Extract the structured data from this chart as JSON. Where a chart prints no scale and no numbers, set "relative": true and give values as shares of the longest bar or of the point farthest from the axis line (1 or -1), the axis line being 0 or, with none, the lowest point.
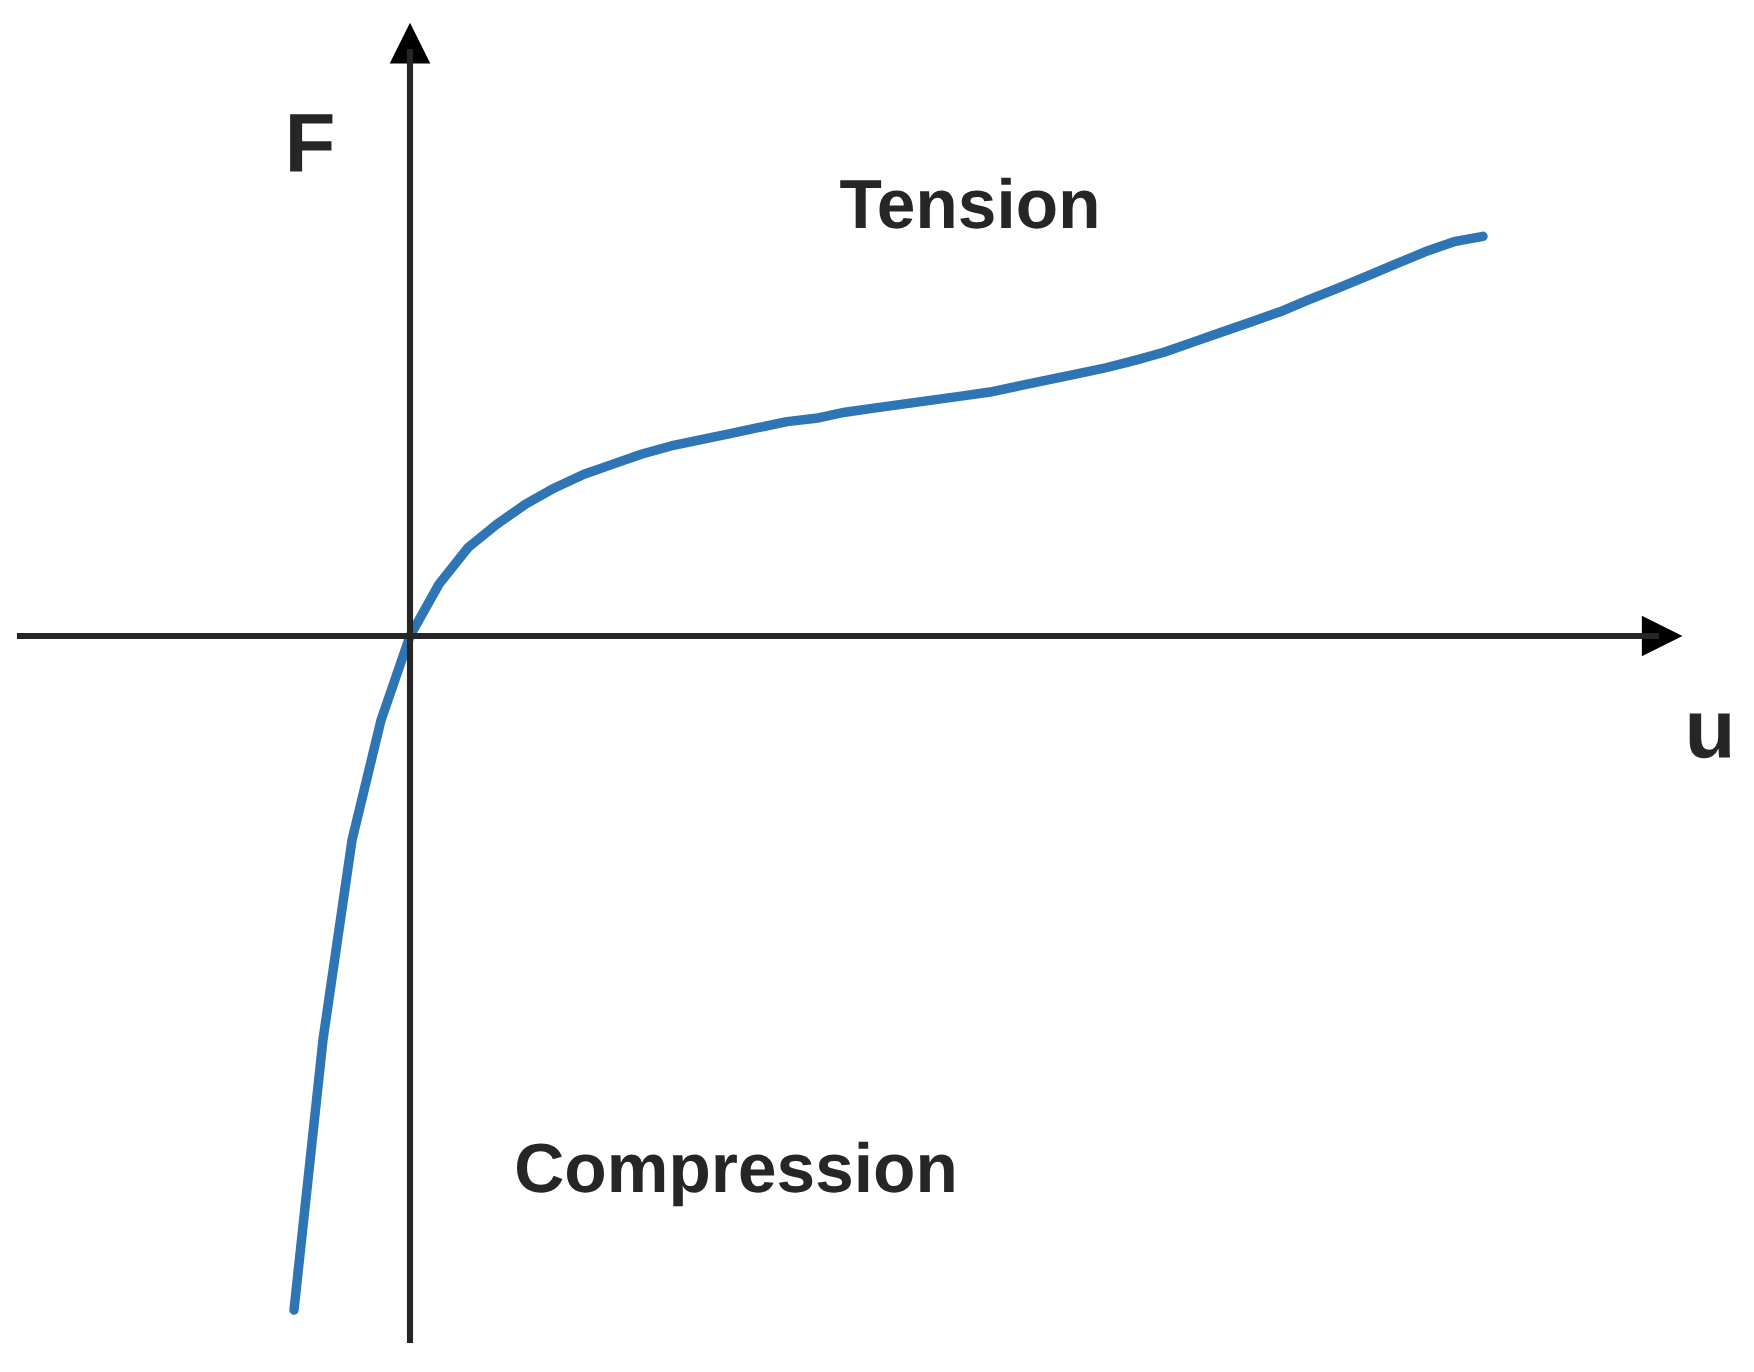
{
  "chart_data": {
    "type": "line",
    "relative": true,
    "xlabel": "u",
    "ylabel": "F",
    "annotations": [
      "Tension",
      "Compression"
    ],
    "categories": [
      null,
      null,
      null,
      null,
      null,
      null,
      null,
      null,
      null,
      null,
      null,
      null,
      null,
      null,
      null,
      null,
      null,
      null,
      null,
      null,
      null,
      null,
      null,
      null,
      null,
      null,
      null,
      null,
      null,
      null,
      null,
      null,
      null,
      null,
      null,
      null,
      null,
      null,
      null,
      null,
      null,
      null
    ],
    "series": [
      {
        "color": "#2e75b6",
        "values": [
          -1,
          -0.599,
          -0.303,
          -0.125,
          0,
          0.077,
          0.131,
          0.166,
          0.196,
          0.22,
          0.24,
          0.255,
          0.27,
          0.282,
          0.291,
          0.3,
          0.309,
          0.318,
          0.323,
          0.332,
          0.338,
          0.344,
          0.35,
          0.356,
          0.362,
          0.371,
          0.38,
          0.389,
          0.398,
          0.409,
          0.421,
          0.436,
          0.451,
          0.466,
          0.481,
          0.499,
          0.516,
          0.534,
          0.552,
          0.57,
          0.585,
          0.593
        ]
      }
    ],
    "legend": false
  }
}
